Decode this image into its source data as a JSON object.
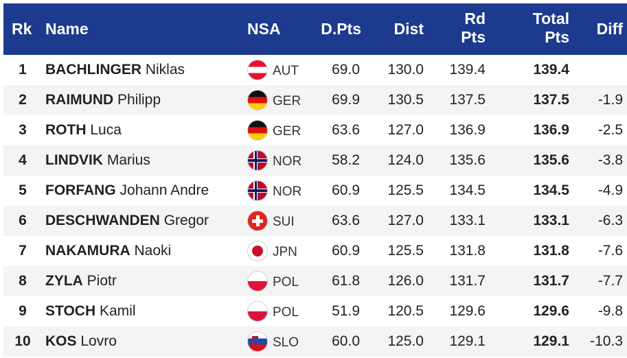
{
  "headers": {
    "rk": "Rk",
    "name": "Name",
    "nsa": "NSA",
    "dpts": "D.Pts",
    "dist": "Dist",
    "rd_line1": "Rd",
    "rd_line2": "Pts",
    "total_line1": "Total",
    "total_line2": "Pts",
    "diff": "Diff"
  },
  "rows": [
    {
      "rk": "1",
      "last": "BACHLINGER",
      "first": "Niklas",
      "flag": "austria-flag-icon",
      "nsa": "AUT",
      "dpts": "69.0",
      "dist": "130.0",
      "rd": "139.4",
      "total": "139.4",
      "diff": ""
    },
    {
      "rk": "2",
      "last": "RAIMUND",
      "first": "Philipp",
      "flag": "germany-flag-icon",
      "nsa": "GER",
      "dpts": "69.9",
      "dist": "130.5",
      "rd": "137.5",
      "total": "137.5",
      "diff": "-1.9"
    },
    {
      "rk": "3",
      "last": "ROTH",
      "first": "Luca",
      "flag": "germany-flag-icon",
      "nsa": "GER",
      "dpts": "63.6",
      "dist": "127.0",
      "rd": "136.9",
      "total": "136.9",
      "diff": "-2.5"
    },
    {
      "rk": "4",
      "last": "LINDVIK",
      "first": "Marius",
      "flag": "norway-flag-icon",
      "nsa": "NOR",
      "dpts": "58.2",
      "dist": "124.0",
      "rd": "135.6",
      "total": "135.6",
      "diff": "-3.8"
    },
    {
      "rk": "5",
      "last": "FORFANG",
      "first": "Johann Andre",
      "flag": "norway-flag-icon",
      "nsa": "NOR",
      "dpts": "60.9",
      "dist": "125.5",
      "rd": "134.5",
      "total": "134.5",
      "diff": "-4.9"
    },
    {
      "rk": "6",
      "last": "DESCHWANDEN",
      "first": "Gregor",
      "flag": "switzerland-flag-icon",
      "nsa": "SUI",
      "dpts": "63.6",
      "dist": "127.0",
      "rd": "133.1",
      "total": "133.1",
      "diff": "-6.3"
    },
    {
      "rk": "7",
      "last": "NAKAMURA",
      "first": "Naoki",
      "flag": "japan-flag-icon",
      "nsa": "JPN",
      "dpts": "60.9",
      "dist": "125.5",
      "rd": "131.8",
      "total": "131.8",
      "diff": "-7.6"
    },
    {
      "rk": "8",
      "last": "ZYLA",
      "first": "Piotr",
      "flag": "poland-flag-icon",
      "nsa": "POL",
      "dpts": "61.8",
      "dist": "126.0",
      "rd": "131.7",
      "total": "131.7",
      "diff": "-7.7"
    },
    {
      "rk": "9",
      "last": "STOCH",
      "first": "Kamil",
      "flag": "poland-flag-icon",
      "nsa": "POL",
      "dpts": "51.9",
      "dist": "120.5",
      "rd": "129.6",
      "total": "129.6",
      "diff": "-9.8"
    },
    {
      "rk": "10",
      "last": "KOS",
      "first": "Lovro",
      "flag": "slovenia-flag-icon",
      "nsa": "SLO",
      "dpts": "60.0",
      "dist": "125.0",
      "rd": "129.1",
      "total": "129.1",
      "diff": "-10.3"
    }
  ],
  "colors": {
    "header_bg": "#1c3b8e",
    "header_text": "#ffffff",
    "row_alt_bg": "#f4f4f4"
  }
}
